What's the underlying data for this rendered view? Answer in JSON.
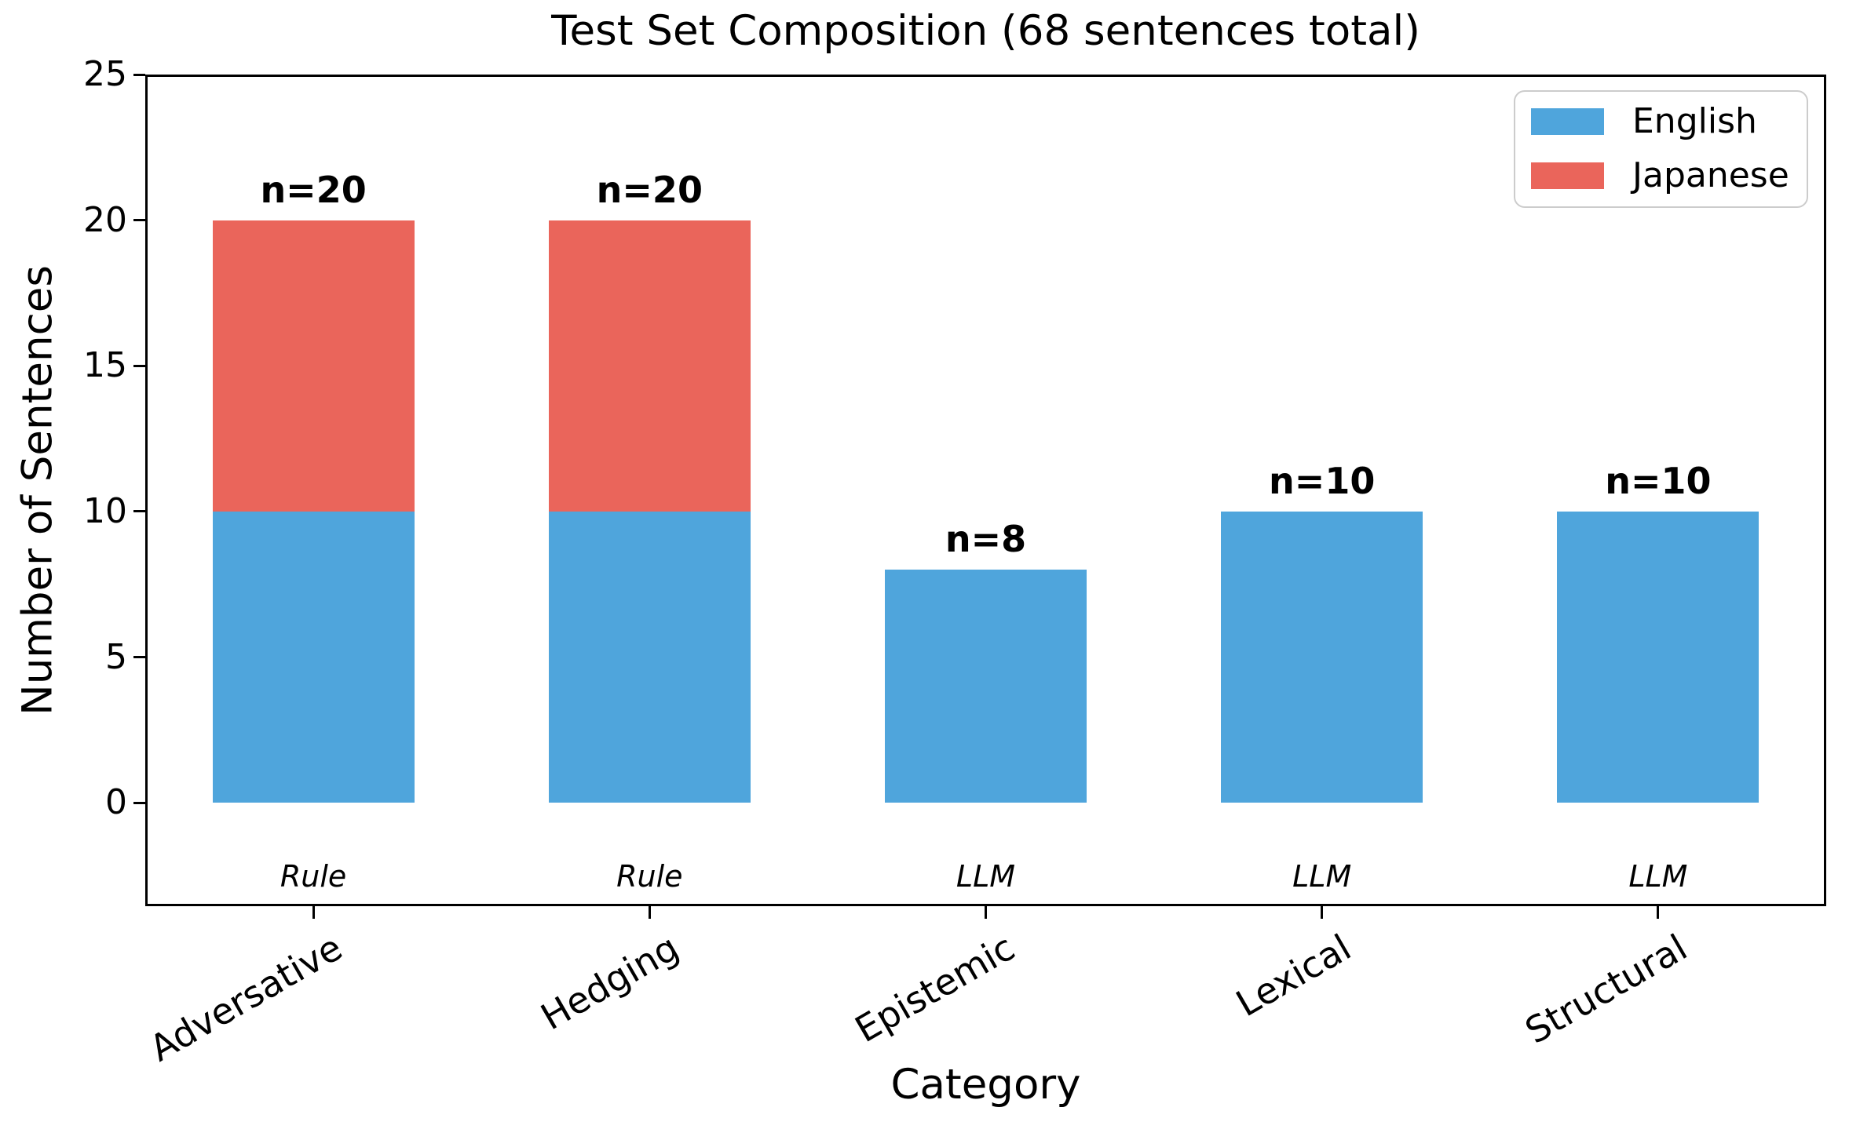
{
  "figure": {
    "title": "Test Set Composition (68 sentences total)",
    "xlabel": "Category",
    "ylabel": "Number of Sentences"
  },
  "colors": {
    "english": "#4FA5DC",
    "japanese": "#EA655B",
    "spine": "#000000",
    "legend_border": "#CCCCCC",
    "text": "#000000",
    "background": "#FFFFFF"
  },
  "legend": {
    "position": "upper right",
    "items": [
      {
        "label": "English",
        "color": "#4FA5DC"
      },
      {
        "label": "Japanese",
        "color": "#EA655B"
      }
    ]
  },
  "chart_data": {
    "type": "bar",
    "stacked": true,
    "title": "Test Set Composition (68 sentences total)",
    "xlabel": "Category",
    "ylabel": "Number of Sentences",
    "categories": [
      "Adversative",
      "Hedging",
      "Epistemic",
      "Lexical",
      "Structural"
    ],
    "series": [
      {
        "name": "English",
        "color": "#4FA5DC",
        "values": [
          10,
          10,
          8,
          10,
          10
        ]
      },
      {
        "name": "Japanese",
        "color": "#EA655B",
        "values": [
          10,
          10,
          0,
          0,
          0
        ]
      }
    ],
    "totals": [
      20,
      20,
      8,
      10,
      10
    ],
    "total_labels": [
      "n=20",
      "n=20",
      "n=8",
      "n=10",
      "n=10"
    ],
    "generation_labels": [
      "Rule",
      "Rule",
      "LLM",
      "LLM",
      "LLM"
    ],
    "yticks": [
      0,
      5,
      10,
      15,
      20,
      25
    ],
    "ylim": [
      -3.55,
      25
    ],
    "bar_width_fraction": 0.12,
    "legend_position": "upper right",
    "grid": false
  }
}
